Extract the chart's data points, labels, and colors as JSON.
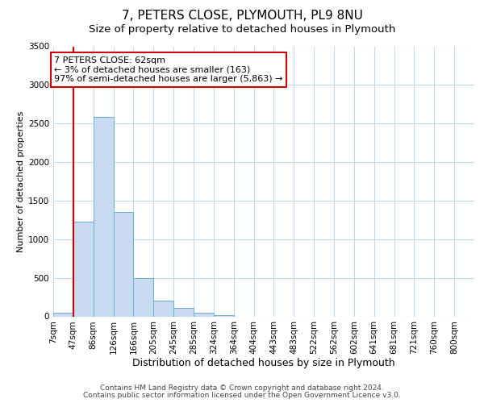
{
  "title": "7, PETERS CLOSE, PLYMOUTH, PL9 8NU",
  "subtitle": "Size of property relative to detached houses in Plymouth",
  "xlabel": "Distribution of detached houses by size in Plymouth",
  "ylabel": "Number of detached properties",
  "bin_labels": [
    "7sqm",
    "47sqm",
    "86sqm",
    "126sqm",
    "166sqm",
    "205sqm",
    "245sqm",
    "285sqm",
    "324sqm",
    "364sqm",
    "404sqm",
    "443sqm",
    "483sqm",
    "522sqm",
    "562sqm",
    "602sqm",
    "641sqm",
    "681sqm",
    "721sqm",
    "760sqm",
    "800sqm"
  ],
  "bin_values": [
    50,
    1230,
    2590,
    1350,
    500,
    200,
    110,
    50,
    20,
    0,
    0,
    0,
    0,
    0,
    0,
    0,
    0,
    0,
    0,
    0,
    0
  ],
  "bar_color": "#c8daf0",
  "bar_edge_color": "#6baed6",
  "vline_x": 1,
  "vline_color": "#cc0000",
  "ylim": [
    0,
    3500
  ],
  "annotation_text": "7 PETERS CLOSE: 62sqm\n← 3% of detached houses are smaller (163)\n97% of semi-detached houses are larger (5,863) →",
  "annotation_box_color": "#ffffff",
  "annotation_box_edge_color": "#cc0000",
  "footer_line1": "Contains HM Land Registry data © Crown copyright and database right 2024.",
  "footer_line2": "Contains public sector information licensed under the Open Government Licence v3.0.",
  "background_color": "#ffffff",
  "grid_color": "#c8d8e8",
  "title_fontsize": 11,
  "subtitle_fontsize": 9.5,
  "xlabel_fontsize": 9,
  "ylabel_fontsize": 8,
  "tick_fontsize": 7.5,
  "annotation_fontsize": 8,
  "footer_fontsize": 6.5
}
